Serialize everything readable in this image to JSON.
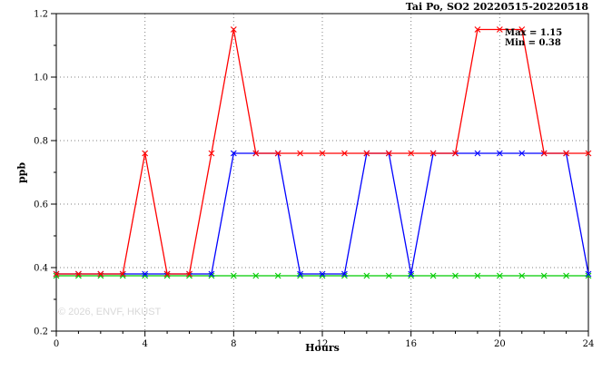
{
  "watermark": "© 2026, ENVF, HKUST",
  "annotation": {
    "max": "Max = 1.15",
    "min": "Min = 0.38"
  },
  "chart_data": {
    "type": "line",
    "title": "Tai Po, SO2 20220515-20220518",
    "xlabel": "Hours",
    "ylabel": "ppb",
    "xlim": [
      0,
      24
    ],
    "ylim": [
      0.2,
      1.2
    ],
    "xticks": [
      0,
      4,
      8,
      12,
      16,
      20,
      24
    ],
    "yticks": [
      0.2,
      0.4,
      0.6,
      0.8,
      1.0,
      1.2
    ],
    "grid": true,
    "legend_position": "none",
    "marker": "x",
    "x": [
      0,
      1,
      2,
      3,
      4,
      5,
      6,
      7,
      8,
      9,
      10,
      11,
      12,
      13,
      14,
      15,
      16,
      17,
      18,
      19,
      20,
      21,
      22,
      23,
      24
    ],
    "series": [
      {
        "name": "red",
        "color": "#ff0000",
        "values": [
          0.38,
          0.38,
          0.38,
          0.38,
          0.76,
          0.38,
          0.38,
          0.76,
          1.15,
          0.76,
          0.76,
          0.76,
          0.76,
          0.76,
          0.76,
          0.76,
          0.76,
          0.76,
          0.76,
          1.15,
          1.15,
          1.15,
          0.76,
          0.76,
          0.76
        ]
      },
      {
        "name": "blue",
        "color": "#0000ff",
        "values": [
          0.38,
          0.38,
          0.38,
          0.38,
          0.38,
          0.38,
          0.38,
          0.38,
          0.76,
          0.76,
          0.76,
          0.38,
          0.38,
          0.38,
          0.76,
          0.76,
          0.38,
          0.76,
          0.76,
          0.76,
          0.76,
          0.76,
          0.76,
          0.76,
          0.38
        ]
      },
      {
        "name": "green",
        "color": "#00cc00",
        "values": [
          0.38,
          0.38,
          0.38,
          0.38,
          0.38,
          0.38,
          0.38,
          0.38,
          0.38,
          0.38,
          0.38,
          0.38,
          0.38,
          0.38,
          0.38,
          0.38,
          0.38,
          0.38,
          0.38,
          0.38,
          0.38,
          0.38,
          0.38,
          0.38,
          0.38
        ]
      }
    ],
    "stats": {
      "max": 1.15,
      "min": 0.38
    }
  }
}
